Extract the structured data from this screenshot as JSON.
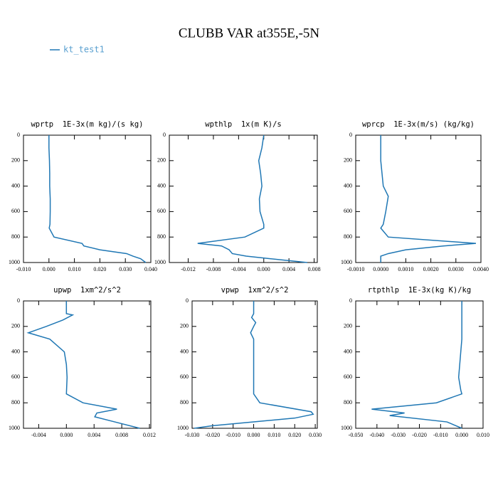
{
  "title": "CLUBB VAR at355E,-5N",
  "chart_data": [
    {
      "type": "line",
      "title": "wprtp  1E-3x(m kg)/(s kg)",
      "invert_y": true,
      "y": [
        0,
        100,
        200,
        300,
        400,
        500,
        600,
        700,
        730,
        800,
        850,
        870,
        900,
        930,
        950,
        970,
        1000
      ],
      "series": [
        {
          "name": "kt_test1",
          "color": "#1f77b4",
          "values": [
            0.0,
            0.0,
            0.0002,
            0.0003,
            0.0003,
            0.0005,
            0.0005,
            0.0004,
            0.0001,
            0.002,
            0.013,
            0.0137,
            0.02,
            0.0305,
            0.033,
            0.036,
            0.038
          ]
        }
      ],
      "xlim": [
        -0.01,
        0.04
      ],
      "xticks": [
        {
          "value": -0.01,
          "label": "-0.010"
        },
        {
          "value": 0,
          "label": "0.000"
        },
        {
          "value": 0.01,
          "label": "0.010"
        },
        {
          "value": 0.02,
          "label": "0.020"
        },
        {
          "value": 0.03,
          "label": "0.030"
        },
        {
          "value": 0.04,
          "label": "0.040"
        }
      ],
      "ylim": [
        0,
        1000
      ],
      "yticks": [
        0,
        200,
        400,
        600,
        800,
        1000
      ]
    },
    {
      "type": "line",
      "title": "wpthlp  1x(m K)/s",
      "invert_y": true,
      "y": [
        0,
        100,
        200,
        300,
        400,
        500,
        600,
        700,
        730,
        800,
        850,
        870,
        900,
        930,
        950,
        970,
        1000
      ],
      "series": [
        {
          "color": "#1f77b4",
          "values": [
            0.0,
            -0.0003,
            -0.0008,
            -0.0005,
            -0.0003,
            -0.0007,
            -0.0006,
            0.0,
            0.0,
            -0.003,
            -0.0105,
            -0.0067,
            -0.0055,
            -0.005,
            -0.0028,
            0.001,
            0.0069
          ]
        }
      ],
      "xlim": [
        -0.015,
        0.0085
      ],
      "xticks": [
        {
          "value": -0.012,
          "label": "-0.012"
        },
        {
          "value": -0.008,
          "label": "-0.008"
        },
        {
          "value": -0.004,
          "label": "-0.004"
        },
        {
          "value": 0,
          "label": "0.000"
        },
        {
          "value": 0.004,
          "label": "0.004"
        },
        {
          "value": 0.008,
          "label": "0.008"
        }
      ],
      "ylim": [
        0,
        1000
      ],
      "yticks": [
        0,
        200,
        400,
        600,
        800,
        1000
      ]
    },
    {
      "type": "line",
      "title": "wprcp  1E-3x(m/s) (kg/kg)",
      "invert_y": true,
      "y": [
        0,
        100,
        200,
        300,
        400,
        480,
        600,
        700,
        730,
        800,
        850,
        870,
        900,
        930,
        950,
        970,
        1000
      ],
      "series": [
        {
          "color": "#1f77b4",
          "values": [
            0.0,
            0.0,
            0.0,
            5e-05,
            0.0001,
            0.0003,
            0.0002,
            0.0001,
            0.0,
            0.0003,
            0.0038,
            0.0025,
            0.001,
            0.0003,
            0.0,
            0.0,
            0.0
          ]
        }
      ],
      "xlim": [
        -0.001,
        0.004
      ],
      "xticks": [
        {
          "value": -0.001,
          "label": "-0.0010"
        },
        {
          "value": 0,
          "label": "0.0000"
        },
        {
          "value": 0.001,
          "label": "0.0010"
        },
        {
          "value": 0.002,
          "label": "0.0020"
        },
        {
          "value": 0.003,
          "label": "0.0030"
        },
        {
          "value": 0.004,
          "label": "0.0040"
        }
      ],
      "ylim": [
        0,
        1000
      ],
      "yticks": [
        0,
        200,
        400,
        600,
        800,
        1000
      ]
    },
    {
      "type": "line",
      "title": "upwp  1xm^2/s^2",
      "invert_y": true,
      "y": [
        0,
        100,
        110,
        150,
        200,
        250,
        300,
        400,
        500,
        600,
        730,
        800,
        850,
        880,
        910,
        950,
        1000
      ],
      "series": [
        {
          "color": "#1f77b4",
          "values": [
            0.0,
            0.0,
            0.0009,
            -0.0005,
            -0.0029,
            -0.0055,
            -0.0024,
            -0.0003,
            0.0,
            0.0001,
            0.0,
            0.0024,
            0.0073,
            0.0044,
            0.0041,
            0.007,
            0.0106
          ]
        }
      ],
      "xlim": [
        -0.0062,
        0.0122
      ],
      "xticks": [
        {
          "value": -0.004,
          "label": "-0.004"
        },
        {
          "value": 0,
          "label": "0.000"
        },
        {
          "value": 0.004,
          "label": "0.004"
        },
        {
          "value": 0.008,
          "label": "0.008"
        },
        {
          "value": 0.012,
          "label": "0.012"
        }
      ],
      "ylim": [
        0,
        1000
      ],
      "yticks": [
        0,
        200,
        400,
        600,
        800,
        1000
      ]
    },
    {
      "type": "line",
      "title": "vpwp  1xm^2/s^2",
      "invert_y": true,
      "y": [
        0,
        100,
        130,
        170,
        200,
        250,
        300,
        400,
        700,
        730,
        800,
        870,
        890,
        920,
        950,
        980,
        1000
      ],
      "series": [
        {
          "color": "#1f77b4",
          "values": [
            0.0,
            0.0,
            -0.001,
            0.001,
            0.0,
            -0.0015,
            0.0,
            0.0,
            0.0,
            0.0,
            0.003,
            0.028,
            0.029,
            0.02,
            0.0,
            -0.02,
            -0.029
          ]
        }
      ],
      "xlim": [
        -0.03,
        0.031
      ],
      "xticks": [
        {
          "value": -0.03,
          "label": "-0.030"
        },
        {
          "value": -0.02,
          "label": "-0.020"
        },
        {
          "value": -0.01,
          "label": "-0.010"
        },
        {
          "value": 0,
          "label": "0.000"
        },
        {
          "value": 0.01,
          "label": "0.010"
        },
        {
          "value": 0.02,
          "label": "0.020"
        },
        {
          "value": 0.03,
          "label": "0.030"
        }
      ],
      "ylim": [
        0,
        1000
      ],
      "yticks": [
        0,
        200,
        400,
        600,
        800,
        1000
      ]
    },
    {
      "type": "line",
      "title": "rtpthlp  1E-3x(kg K)/kg",
      "invert_y": true,
      "y": [
        0,
        100,
        200,
        300,
        400,
        500,
        600,
        700,
        730,
        800,
        850,
        880,
        900,
        950,
        1000
      ],
      "series": [
        {
          "color": "#1f77b4",
          "values": [
            0.0,
            0.0,
            0.0,
            0.0,
            -0.0005,
            -0.001,
            -0.0015,
            -0.0005,
            0.0,
            -0.012,
            -0.0425,
            -0.027,
            -0.034,
            -0.007,
            0.0
          ]
        }
      ],
      "xlim": [
        -0.05,
        0.01
      ],
      "xticks": [
        {
          "value": -0.05,
          "label": "-0.050"
        },
        {
          "value": -0.04,
          "label": "-0.040"
        },
        {
          "value": -0.03,
          "label": "-0.030"
        },
        {
          "value": -0.02,
          "label": "-0.020"
        },
        {
          "value": -0.01,
          "label": "-0.010"
        },
        {
          "value": 0,
          "label": "0.000"
        },
        {
          "value": 0.01,
          "label": "0.010"
        }
      ],
      "ylim": [
        0,
        1000
      ],
      "yticks": [
        0,
        200,
        400,
        600,
        800,
        1000
      ]
    }
  ]
}
